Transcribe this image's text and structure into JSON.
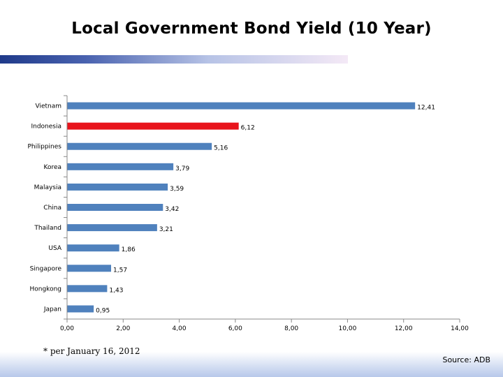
{
  "title": "Local Government Bond Yield (10 Year)",
  "footnote": "* per January 16, 2012",
  "source": "Source: ADB",
  "colors": {
    "bar": "#4f81bd",
    "highlight": "#e8141c",
    "axis": "#888888"
  },
  "chart_data": {
    "type": "bar",
    "orientation": "horizontal",
    "categories": [
      "Vietnam",
      "Indonesia",
      "Philippines",
      "Korea",
      "Malaysia",
      "China",
      "Thailand",
      "USA",
      "Singapore",
      "Hongkong",
      "Japan"
    ],
    "values": [
      12.41,
      6.12,
      5.16,
      3.79,
      3.59,
      3.42,
      3.21,
      1.86,
      1.57,
      1.43,
      0.95
    ],
    "value_labels": [
      "12,41",
      "6,12",
      "5,16",
      "3,79",
      "3,59",
      "3,42",
      "3,21",
      "1,86",
      "1,57",
      "1,43",
      "0,95"
    ],
    "highlight_index": 1,
    "xlim": [
      0,
      14
    ],
    "x_ticks": [
      0,
      2,
      4,
      6,
      8,
      10,
      12,
      14
    ],
    "x_tick_labels": [
      "0,00",
      "2,00",
      "4,00",
      "6,00",
      "8,00",
      "10,00",
      "12,00",
      "14,00"
    ],
    "grid": false,
    "legend": "none"
  }
}
